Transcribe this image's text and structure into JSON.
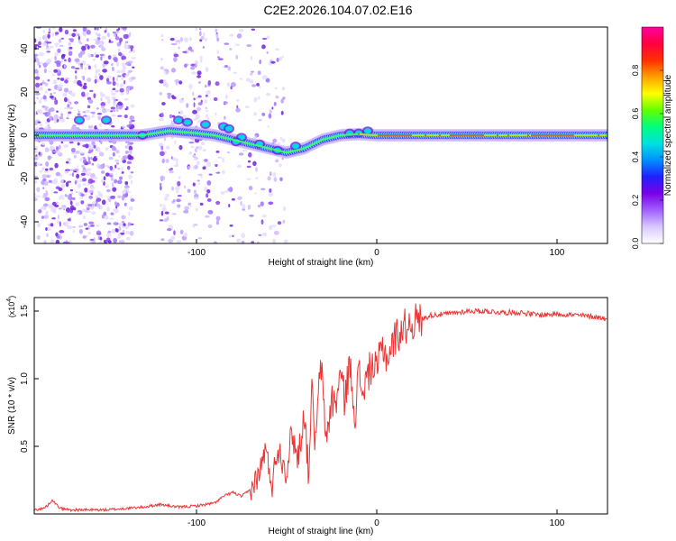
{
  "title": "C2E2.2026.104.07.02.E16",
  "chart_data": [
    {
      "type": "heatmap",
      "name": "spectrogram",
      "xlabel": "Height of straight line (km)",
      "ylabel": "Frequency (Hz)",
      "xlim": [
        -190,
        128
      ],
      "ylim": [
        -50,
        50
      ],
      "x_ticks": [
        -100,
        0,
        100
      ],
      "y_ticks": [
        -40,
        -20,
        0,
        20,
        40
      ],
      "colorbar": {
        "label": "Normalized spectral amplitude",
        "range": [
          0,
          1
        ],
        "ticks": [
          "0.0",
          "0.2",
          "0.4",
          "0.6",
          "0.8"
        ],
        "colors": [
          "#ffffff",
          "#d9c8ff",
          "#a060ff",
          "#7a00e6",
          "#2020ff",
          "#0090ff",
          "#00e0e0",
          "#00ff80",
          "#60ff00",
          "#ffff00",
          "#ffa000",
          "#ff3000",
          "#ff0040",
          "#ff00a0"
        ]
      },
      "ridge": {
        "x": [
          -190,
          -160,
          -145,
          -130,
          -115,
          -100,
          -90,
          -80,
          -70,
          -60,
          -50,
          -40,
          -30,
          -20,
          -10,
          0,
          10,
          30,
          60,
          100,
          128
        ],
        "y": [
          0,
          0,
          0,
          0,
          2,
          1,
          0,
          -2,
          -4,
          -6,
          -8,
          -6,
          -2,
          0,
          0.5,
          0,
          0,
          0,
          0,
          0,
          0
        ]
      }
    },
    {
      "type": "line",
      "name": "snr",
      "xlabel": "Height of straight line (km)",
      "ylabel": "SNR (10 * v/v)",
      "y_multiplier": "(x10",
      "y_multiplier_exp": "4",
      "y_multiplier_close": ")",
      "xlim": [
        -190,
        128
      ],
      "ylim": [
        0,
        1.6
      ],
      "x_ticks": [
        -100,
        0,
        100
      ],
      "y_ticks": [
        0.5,
        1.0,
        1.5
      ],
      "y_tick_labels": [
        "0.5",
        "1.0",
        "1.5"
      ],
      "line_color": "#ee3333",
      "series": [
        {
          "name": "SNR",
          "x": [
            -190,
            -185,
            -182,
            -180,
            -178,
            -175,
            -170,
            -160,
            -150,
            -140,
            -130,
            -120,
            -110,
            -100,
            -95,
            -90,
            -85,
            -80,
            -75,
            -70,
            -65,
            -62,
            -58,
            -55,
            -50,
            -47,
            -44,
            -40,
            -38,
            -36,
            -34,
            -31,
            -30,
            -28,
            -25,
            -23,
            -20,
            -18,
            -15,
            -12,
            -10,
            -8,
            -5,
            -3,
            0,
            3,
            6,
            10,
            15,
            20,
            25,
            30,
            40,
            50,
            60,
            70,
            80,
            90,
            100,
            110,
            120,
            125,
            128
          ],
          "y": [
            0.03,
            0.04,
            0.07,
            0.11,
            0.07,
            0.04,
            0.03,
            0.03,
            0.03,
            0.04,
            0.05,
            0.07,
            0.05,
            0.06,
            0.07,
            0.08,
            0.13,
            0.16,
            0.13,
            0.18,
            0.3,
            0.48,
            0.22,
            0.5,
            0.32,
            0.62,
            0.4,
            0.75,
            0.3,
            0.9,
            0.5,
            1.15,
            0.9,
            0.55,
            0.85,
            0.8,
            1.05,
            0.85,
            1.1,
            0.75,
            1.05,
            0.9,
            1.02,
            1.1,
            1.05,
            1.25,
            1.15,
            1.3,
            1.38,
            1.42,
            1.44,
            1.47,
            1.48,
            1.5,
            1.5,
            1.49,
            1.49,
            1.47,
            1.48,
            1.47,
            1.46,
            1.45,
            1.44
          ]
        }
      ]
    }
  ]
}
